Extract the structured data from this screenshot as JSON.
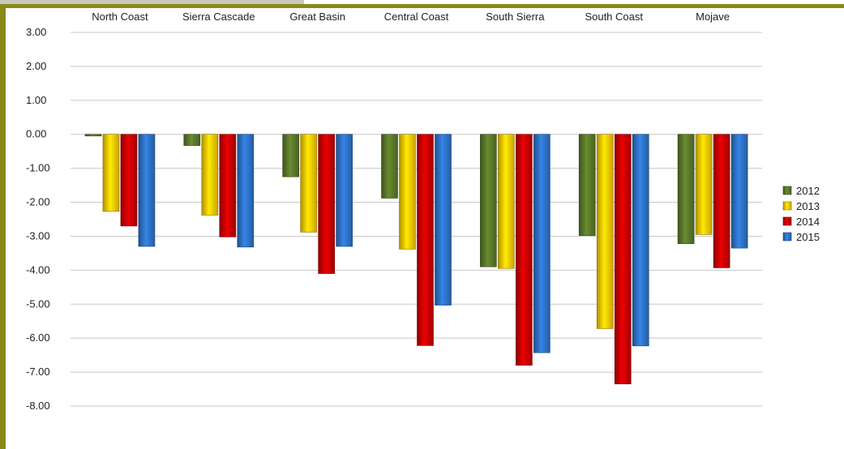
{
  "chart_data": {
    "type": "bar",
    "categories": [
      "North Coast",
      "Sierra Cascade",
      "Great Basin",
      "Central Coast",
      "South Sierra",
      "South Coast",
      "Mojave"
    ],
    "series": [
      {
        "name": "2012",
        "color": "#5b7a2a",
        "values": [
          -0.05,
          -0.33,
          -1.25,
          -1.88,
          -3.9,
          -2.98,
          -3.22
        ]
      },
      {
        "name": "2013",
        "color": "#ffcc00",
        "values": [
          -2.27,
          -2.38,
          -2.88,
          -3.38,
          -3.95,
          -5.72,
          -2.95
        ]
      },
      {
        "name": "2014",
        "color": "#cc0000",
        "values": [
          -2.7,
          -3.02,
          -4.1,
          -6.22,
          -6.8,
          -7.35,
          -3.93
        ]
      },
      {
        "name": "2015",
        "color": "#2e74c9",
        "values": [
          -3.3,
          -3.32,
          -3.3,
          -5.03,
          -6.43,
          -6.23,
          -3.35
        ]
      }
    ],
    "y_ticks": [
      "3.00",
      "2.00",
      "1.00",
      "0.00",
      "-1.00",
      "-2.00",
      "-3.00",
      "-4.00",
      "-5.00",
      "-6.00",
      "-7.00",
      "-8.00"
    ],
    "ylim": [
      -8,
      3
    ],
    "grid": true,
    "legend_position": "right",
    "category_labels_position": "top"
  }
}
